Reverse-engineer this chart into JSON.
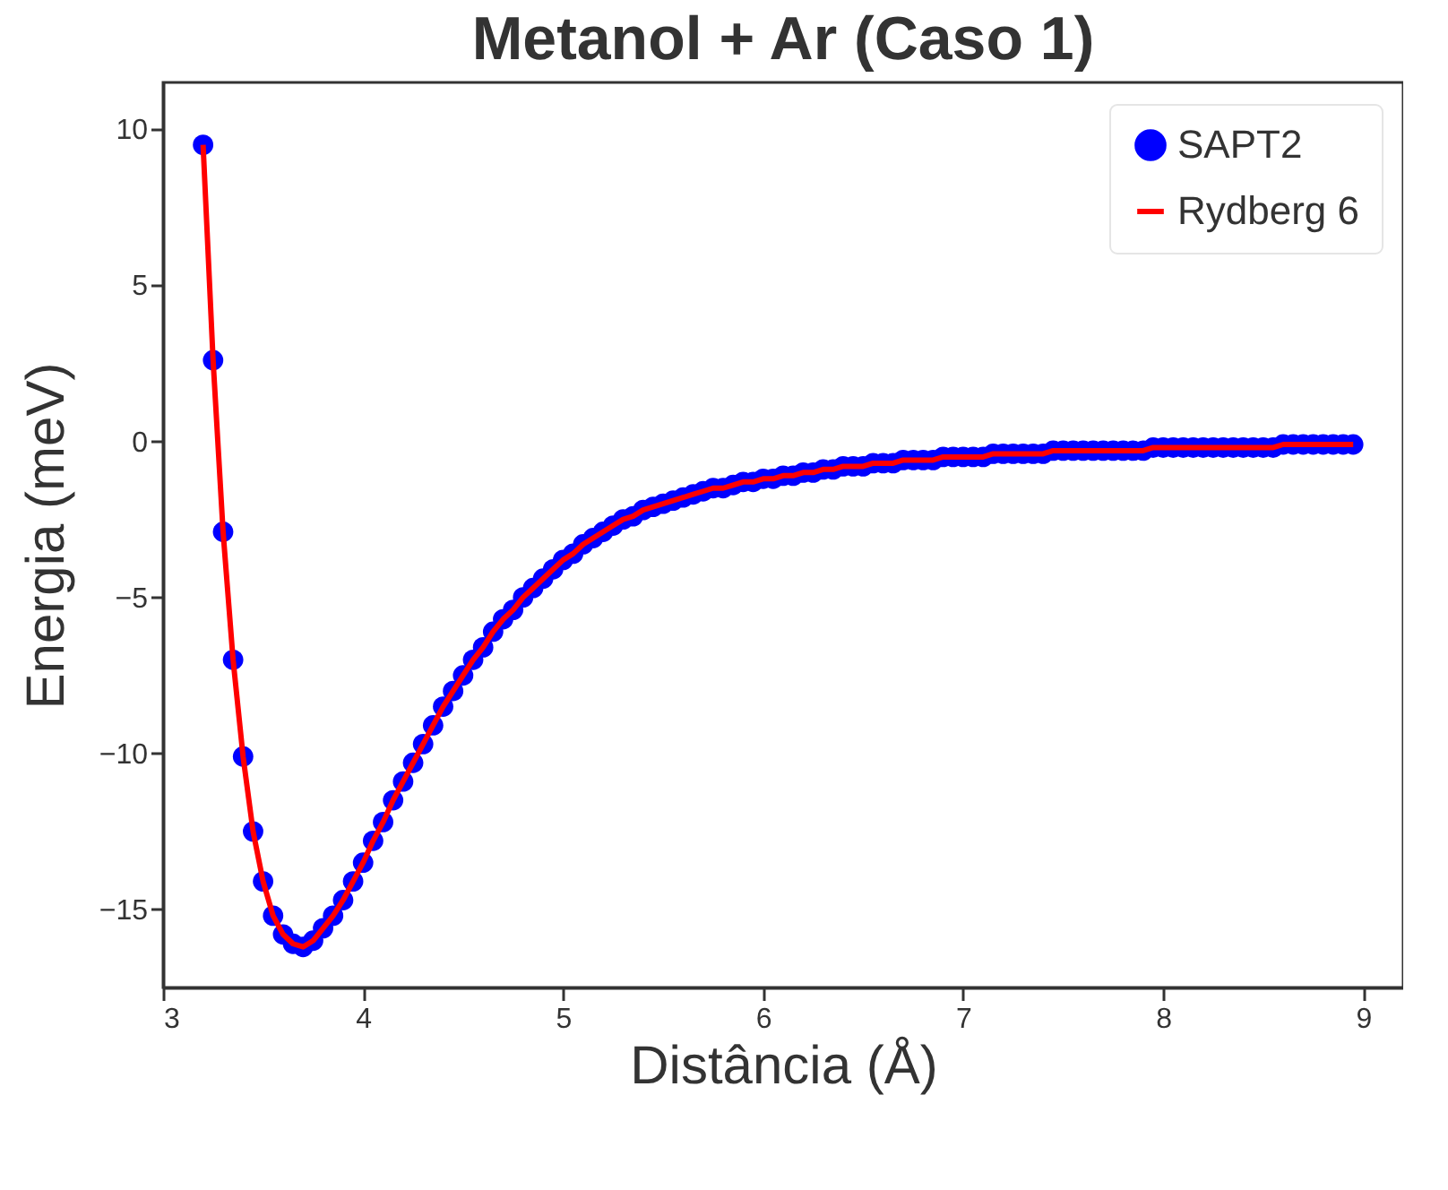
{
  "chart_data": {
    "type": "scatter",
    "title": "Metanol + Ar (Caso 1)",
    "xlabel": "Distância (Å)",
    "ylabel": "Energia (meV)",
    "x": [
      3.2,
      3.25,
      3.3,
      3.35,
      3.4,
      3.45,
      3.5,
      3.55,
      3.6,
      3.65,
      3.7,
      3.75,
      3.8,
      3.85,
      3.9,
      3.95,
      4.0,
      4.05,
      4.1,
      4.15,
      4.2,
      4.25,
      4.3,
      4.35,
      4.4,
      4.45,
      4.5,
      4.55,
      4.6,
      4.65,
      4.7,
      4.75,
      4.8,
      4.85,
      4.9,
      4.95,
      5.0,
      5.05,
      5.1,
      5.15,
      5.2,
      5.25,
      5.3,
      5.35,
      5.4,
      5.45,
      5.5,
      5.55,
      5.6,
      5.65,
      5.7,
      5.75,
      5.8,
      5.85,
      5.9,
      5.95,
      6.0,
      6.05,
      6.1,
      6.15,
      6.2,
      6.25,
      6.3,
      6.35,
      6.4,
      6.45,
      6.5,
      6.55,
      6.6,
      6.65,
      6.7,
      6.75,
      6.8,
      6.85,
      6.9,
      6.95,
      7.0,
      7.05,
      7.1,
      7.15,
      7.2,
      7.25,
      7.3,
      7.35,
      7.4,
      7.45,
      7.5,
      7.55,
      7.6,
      7.65,
      7.7,
      7.75,
      7.8,
      7.85,
      7.9,
      7.95,
      8.0,
      8.05,
      8.1,
      8.15,
      8.2,
      8.25,
      8.3,
      8.35,
      8.4,
      8.45,
      8.5,
      8.55,
      8.6,
      8.65,
      8.7,
      8.75,
      8.8,
      8.85,
      8.9,
      8.95
    ],
    "series": [
      {
        "name": "SAPT2",
        "color": "#0000ff",
        "marker": "circle",
        "values": [
          9.5,
          2.6,
          -2.9,
          -7.0,
          -10.1,
          -12.5,
          -14.1,
          -15.2,
          -15.8,
          -16.1,
          -16.2,
          -16.0,
          -15.6,
          -15.2,
          -14.7,
          -14.1,
          -13.5,
          -12.8,
          -12.2,
          -11.5,
          -10.9,
          -10.3,
          -9.7,
          -9.1,
          -8.5,
          -8.0,
          -7.5,
          -7.0,
          -6.6,
          -6.1,
          -5.7,
          -5.4,
          -5.0,
          -4.7,
          -4.4,
          -4.1,
          -3.8,
          -3.6,
          -3.3,
          -3.1,
          -2.9,
          -2.7,
          -2.5,
          -2.4,
          -2.2,
          -2.1,
          -2.0,
          -1.9,
          -1.8,
          -1.7,
          -1.6,
          -1.5,
          -1.5,
          -1.4,
          -1.3,
          -1.3,
          -1.2,
          -1.2,
          -1.1,
          -1.1,
          -1.0,
          -1.0,
          -0.9,
          -0.9,
          -0.8,
          -0.8,
          -0.8,
          -0.7,
          -0.7,
          -0.7,
          -0.6,
          -0.6,
          -0.6,
          -0.6,
          -0.5,
          -0.5,
          -0.5,
          -0.5,
          -0.5,
          -0.4,
          -0.4,
          -0.4,
          -0.4,
          -0.4,
          -0.4,
          -0.3,
          -0.3,
          -0.3,
          -0.3,
          -0.3,
          -0.3,
          -0.3,
          -0.3,
          -0.3,
          -0.3,
          -0.2,
          -0.2,
          -0.2,
          -0.2,
          -0.2,
          -0.2,
          -0.2,
          -0.2,
          -0.2,
          -0.2,
          -0.2,
          -0.2,
          -0.2,
          -0.1,
          -0.1,
          -0.1,
          -0.1,
          -0.1,
          -0.1,
          -0.1,
          -0.1
        ]
      },
      {
        "name": "Rydberg 6",
        "type": "line",
        "color": "#ff0000",
        "marker": "none",
        "values": [
          9.5,
          2.6,
          -2.9,
          -7.0,
          -10.1,
          -12.5,
          -14.1,
          -15.2,
          -15.8,
          -16.1,
          -16.2,
          -16.0,
          -15.6,
          -15.2,
          -14.7,
          -14.1,
          -13.5,
          -12.8,
          -12.2,
          -11.5,
          -10.9,
          -10.3,
          -9.7,
          -9.1,
          -8.5,
          -8.0,
          -7.5,
          -7.0,
          -6.6,
          -6.1,
          -5.7,
          -5.4,
          -5.0,
          -4.7,
          -4.4,
          -4.1,
          -3.8,
          -3.6,
          -3.3,
          -3.1,
          -2.9,
          -2.7,
          -2.5,
          -2.4,
          -2.2,
          -2.1,
          -2.0,
          -1.9,
          -1.8,
          -1.7,
          -1.6,
          -1.5,
          -1.5,
          -1.4,
          -1.3,
          -1.3,
          -1.2,
          -1.2,
          -1.1,
          -1.1,
          -1.0,
          -1.0,
          -0.9,
          -0.9,
          -0.8,
          -0.8,
          -0.8,
          -0.7,
          -0.7,
          -0.7,
          -0.6,
          -0.6,
          -0.6,
          -0.6,
          -0.5,
          -0.5,
          -0.5,
          -0.5,
          -0.5,
          -0.4,
          -0.4,
          -0.4,
          -0.4,
          -0.4,
          -0.4,
          -0.3,
          -0.3,
          -0.3,
          -0.3,
          -0.3,
          -0.3,
          -0.3,
          -0.3,
          -0.3,
          -0.3,
          -0.2,
          -0.2,
          -0.2,
          -0.2,
          -0.2,
          -0.2,
          -0.2,
          -0.2,
          -0.2,
          -0.2,
          -0.2,
          -0.2,
          -0.2,
          -0.1,
          -0.1,
          -0.1,
          -0.1,
          -0.1,
          -0.1,
          -0.1,
          -0.1
        ]
      }
    ],
    "xlim": [
      3,
      9.2
    ],
    "ylim": [
      -17.5,
      11.5
    ],
    "xticks": [
      3,
      4,
      5,
      6,
      7,
      8,
      9
    ],
    "yticks": [
      -15,
      -10,
      -5,
      0,
      5,
      10
    ],
    "grid": false,
    "legend": "top right",
    "line_style": "solid"
  }
}
